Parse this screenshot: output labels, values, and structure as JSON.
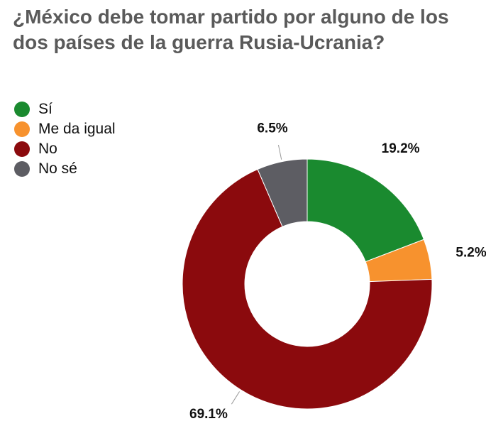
{
  "chart_data": {
    "type": "pie",
    "variant": "donut",
    "title": "¿México debe tomar partido por alguno de los dos países de la guerra Rusia-Ucrania?",
    "categories": [
      "Sí",
      "Me da igual",
      "No",
      "No sé"
    ],
    "values": [
      19.2,
      5.2,
      69.1,
      6.5
    ],
    "data_labels": [
      "19.2%",
      "5.2%",
      "69.1%",
      "6.5%"
    ],
    "colors": [
      "#1a8a2f",
      "#f7922e",
      "#8b0a0d",
      "#5d5d63"
    ],
    "legend_position": "top-left"
  }
}
